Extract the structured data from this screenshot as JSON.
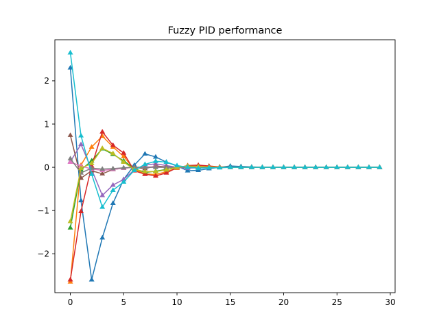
{
  "chart_data": {
    "type": "line",
    "title": "Fuzzy PID performance",
    "xlabel": "",
    "ylabel": "",
    "xlim": [
      -1.45,
      30.45
    ],
    "ylim": [
      -2.9,
      2.95
    ],
    "xticks": [
      0,
      5,
      10,
      15,
      20,
      25,
      30
    ],
    "yticks": [
      -2,
      -1,
      0,
      1,
      2
    ],
    "xtick_labels": [
      "0",
      "5",
      "10",
      "15",
      "20",
      "25",
      "30"
    ],
    "ytick_labels": [
      "−2",
      "−1",
      "0",
      "1",
      "2"
    ],
    "grid": false,
    "legend": "none",
    "marker": "triangle-up",
    "x": [
      0,
      1,
      2,
      3,
      4,
      5,
      6,
      7,
      8,
      9,
      10,
      11,
      12,
      13,
      14,
      15,
      16,
      17,
      18,
      19,
      20,
      21,
      22,
      23,
      24,
      25,
      26,
      27,
      28,
      29
    ],
    "series": [
      {
        "color": "#1f77b4",
        "values": [
          2.3,
          -0.77,
          -2.6,
          -1.63,
          -0.83,
          -0.28,
          0.05,
          0.31,
          0.24,
          0.12,
          0.03,
          -0.08,
          -0.07,
          -0.03,
          0.0,
          0.03,
          0.02,
          0.01,
          0.0,
          0.0,
          0.0,
          0.0,
          0.0,
          0.0,
          0.0,
          0.0,
          0.0,
          0.0,
          0.0,
          0.0
        ]
      },
      {
        "color": "#ff7f0e",
        "values": [
          -2.65,
          0.05,
          0.47,
          0.72,
          0.47,
          0.25,
          -0.05,
          -0.15,
          -0.17,
          -0.1,
          -0.02,
          0.02,
          0.03,
          0.02,
          0.01,
          0.0,
          0.0,
          0.0,
          0.0,
          0.0,
          0.0,
          0.0,
          0.0,
          0.0,
          0.0,
          0.0,
          0.0,
          0.0,
          0.0,
          0.0
        ]
      },
      {
        "color": "#2ca02c",
        "values": [
          -1.4,
          -0.06,
          0.15,
          0.43,
          0.3,
          0.15,
          -0.03,
          -0.12,
          -0.09,
          -0.05,
          0.0,
          0.02,
          0.01,
          0.01,
          0.0,
          0.0,
          0.0,
          0.0,
          0.0,
          0.0,
          0.0,
          0.0,
          0.0,
          0.0,
          0.0,
          0.0,
          0.0,
          0.0,
          0.0,
          0.0
        ]
      },
      {
        "color": "#d62728",
        "values": [
          -2.6,
          -1.02,
          0.03,
          0.82,
          0.51,
          0.33,
          -0.08,
          -0.16,
          -0.2,
          -0.13,
          -0.01,
          0.04,
          0.05,
          0.03,
          0.01,
          0.0,
          0.0,
          0.0,
          0.0,
          0.0,
          0.0,
          0.0,
          0.0,
          0.0,
          0.0,
          0.0,
          0.0,
          0.0,
          0.0,
          0.0
        ]
      },
      {
        "color": "#9467bd",
        "values": [
          0.13,
          0.53,
          -0.05,
          -0.65,
          -0.41,
          -0.28,
          -0.06,
          0.05,
          0.08,
          0.04,
          0.0,
          -0.02,
          -0.01,
          -0.01,
          0.0,
          0.0,
          0.0,
          0.0,
          0.0,
          0.0,
          0.0,
          0.0,
          0.0,
          0.0,
          0.0,
          0.0,
          0.0,
          0.0,
          0.0,
          0.0
        ]
      },
      {
        "color": "#8c564b",
        "values": [
          0.74,
          -0.25,
          -0.08,
          -0.15,
          -0.05,
          -0.02,
          0.0,
          -0.03,
          0.03,
          0.01,
          0.0,
          0.0,
          0.0,
          0.0,
          0.0,
          0.0,
          0.0,
          0.0,
          0.0,
          0.0,
          0.0,
          0.0,
          0.0,
          0.0,
          0.0,
          0.0,
          0.0,
          0.0,
          0.0,
          0.0
        ]
      },
      {
        "color": "#e377c2",
        "values": [
          0.12,
          0.03,
          -0.04,
          -0.07,
          -0.05,
          -0.02,
          0.0,
          0.01,
          0.01,
          0.0,
          0.0,
          0.0,
          0.0,
          0.0,
          0.0,
          0.0,
          0.0,
          0.0,
          0.0,
          0.0,
          0.0,
          0.0,
          0.0,
          0.0,
          0.0,
          0.0,
          0.0,
          0.0,
          0.0,
          0.0
        ]
      },
      {
        "color": "#7f7f7f",
        "values": [
          0.2,
          -0.13,
          -0.02,
          -0.04,
          -0.03,
          -0.01,
          0.0,
          0.0,
          0.0,
          0.0,
          0.0,
          0.0,
          0.0,
          0.0,
          0.0,
          0.0,
          0.0,
          0.0,
          0.0,
          0.0,
          0.0,
          0.0,
          0.0,
          0.0,
          0.0,
          0.0,
          0.0,
          0.0,
          0.0,
          0.0
        ]
      },
      {
        "color": "#bcbd22",
        "values": [
          -1.25,
          -0.02,
          0.09,
          0.44,
          0.32,
          0.12,
          -0.05,
          -0.1,
          -0.1,
          -0.06,
          0.0,
          0.03,
          0.02,
          0.01,
          0.0,
          0.0,
          0.0,
          0.0,
          0.0,
          0.0,
          0.0,
          0.0,
          0.0,
          0.0,
          0.0,
          0.0,
          0.0,
          0.0,
          0.0,
          0.0
        ]
      },
      {
        "color": "#17becf",
        "values": [
          2.65,
          0.73,
          -0.16,
          -0.92,
          -0.53,
          -0.34,
          -0.07,
          0.07,
          0.14,
          0.12,
          0.04,
          0.0,
          -0.02,
          -0.01,
          -0.01,
          0.0,
          0.0,
          0.0,
          0.0,
          0.0,
          0.0,
          0.0,
          0.0,
          0.0,
          0.0,
          0.0,
          0.0,
          0.0,
          0.0,
          0.0
        ]
      }
    ]
  }
}
